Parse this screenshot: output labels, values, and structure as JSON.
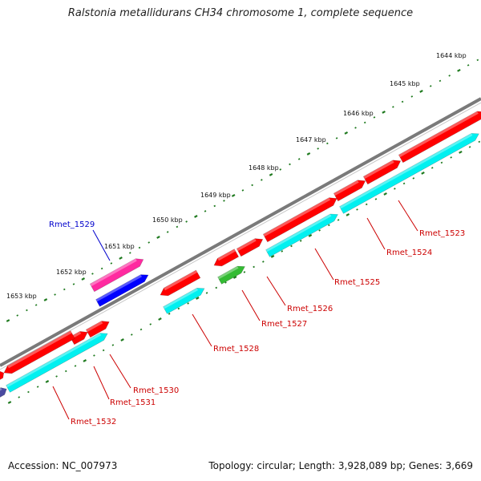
{
  "title": "Ralstonia metallidurans CH34 chromosome 1, complete sequence",
  "footer": {
    "accession": "Accession: NC_007973",
    "topology": "Topology: circular; Length: 3,928,089 bp; Genes: 3,669"
  },
  "colors": {
    "backbone": "#808080",
    "tick": "#1f7a1f",
    "cds_red": "#ff0000",
    "cds_cyan": "#00f0f0",
    "cds_green": "#33bb33",
    "cds_pink": "#ff2aa0",
    "cds_blue": "#0000ff",
    "cds_navy": "#4a4aa0",
    "label_red": "#cc0000",
    "label_blue": "#0000cc"
  },
  "scale": {
    "unit": "kbp",
    "ticks": [
      {
        "label": "1644 kbp"
      },
      {
        "label": "1645 kbp"
      },
      {
        "label": "1646 kbp"
      },
      {
        "label": "1647 kbp"
      },
      {
        "label": "1648 kbp"
      },
      {
        "label": "1649 kbp"
      },
      {
        "label": "1650 kbp"
      },
      {
        "label": "1651 kbp"
      },
      {
        "label": "1652 kbp"
      },
      {
        "label": "1653 kbp"
      }
    ]
  },
  "genes": [
    {
      "name": "Rmet_1523",
      "color": "label_red"
    },
    {
      "name": "Rmet_1524",
      "color": "label_red"
    },
    {
      "name": "Rmet_1525",
      "color": "label_red"
    },
    {
      "name": "Rmet_1526",
      "color": "label_red"
    },
    {
      "name": "Rmet_1527",
      "color": "label_red"
    },
    {
      "name": "Rmet_1528",
      "color": "label_red"
    },
    {
      "name": "Rmet_1529",
      "color": "label_blue"
    },
    {
      "name": "Rmet_1530",
      "color": "label_red"
    },
    {
      "name": "Rmet_1531",
      "color": "label_red"
    },
    {
      "name": "Rmet_1532",
      "color": "label_red"
    }
  ]
}
